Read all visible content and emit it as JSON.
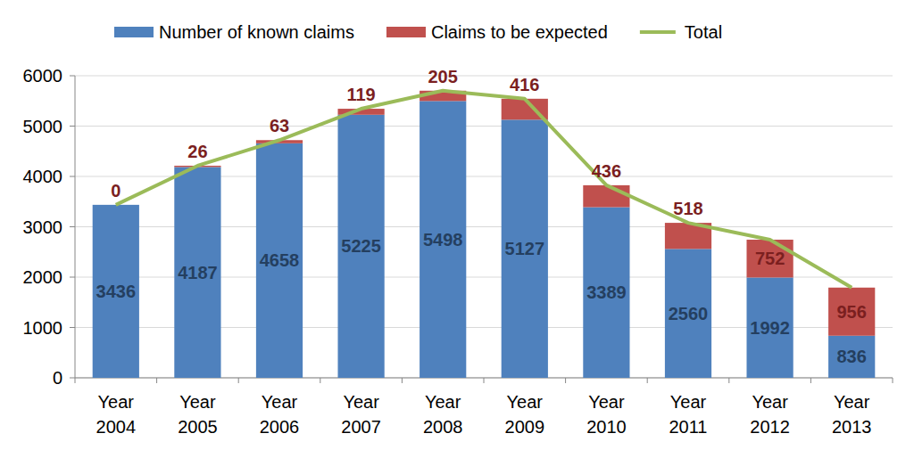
{
  "chart_data": {
    "type": "bar",
    "stacked": true,
    "data_labels": true,
    "grid": true,
    "legend": "top",
    "categories": [
      "Year 2004",
      "Year 2005",
      "Year 2006",
      "Year 2007",
      "Year 2008",
      "Year 2009",
      "Year 2010",
      "Year 2011",
      "Year 2012",
      "Year 2013"
    ],
    "series": [
      {
        "name": "Number of known claims",
        "type": "bar",
        "color": "#4f81bd",
        "values": [
          3436,
          4187,
          4658,
          5225,
          5498,
          5127,
          3389,
          2560,
          1992,
          836
        ]
      },
      {
        "name": "Claims to be expected",
        "type": "bar",
        "color": "#c0504d",
        "values": [
          0,
          26,
          63,
          119,
          205,
          416,
          436,
          518,
          752,
          956
        ]
      },
      {
        "name": "Total",
        "type": "line",
        "color": "#9bbb59",
        "values": [
          3436,
          4213,
          4721,
          5344,
          5703,
          5543,
          3825,
          3078,
          2744,
          1792
        ]
      }
    ],
    "ylim": [
      0,
      6000
    ],
    "yticks": [
      0,
      1000,
      2000,
      3000,
      4000,
      5000,
      6000
    ]
  }
}
